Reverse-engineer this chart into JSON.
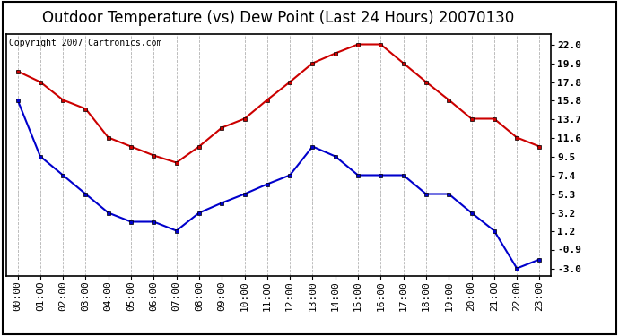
{
  "title": "Outdoor Temperature (vs) Dew Point (Last 24 Hours) 20070130",
  "copyright_text": "Copyright 2007 Cartronics.com",
  "x_labels": [
    "00:00",
    "01:00",
    "02:00",
    "03:00",
    "04:00",
    "05:00",
    "06:00",
    "07:00",
    "08:00",
    "09:00",
    "10:00",
    "11:00",
    "12:00",
    "13:00",
    "14:00",
    "15:00",
    "16:00",
    "17:00",
    "18:00",
    "19:00",
    "20:00",
    "21:00",
    "22:00",
    "23:00"
  ],
  "temp_data": [
    19.0,
    17.8,
    15.8,
    14.8,
    11.6,
    10.6,
    9.6,
    8.8,
    10.6,
    12.7,
    13.7,
    15.8,
    17.8,
    19.9,
    21.0,
    22.0,
    22.0,
    19.9,
    17.8,
    15.8,
    13.7,
    13.7,
    11.6,
    10.6
  ],
  "dew_data": [
    15.8,
    9.5,
    7.4,
    5.3,
    3.2,
    2.2,
    2.2,
    1.2,
    3.2,
    4.3,
    5.3,
    6.4,
    7.4,
    10.6,
    9.5,
    7.4,
    7.4,
    7.4,
    5.3,
    5.3,
    3.2,
    1.2,
    -3.0,
    -2.0
  ],
  "temp_color": "#cc0000",
  "dew_color": "#0000cc",
  "plot_bg": "#ffffff",
  "grid_color": "#aaaaaa",
  "yticks": [
    22.0,
    19.9,
    17.8,
    15.8,
    13.7,
    11.6,
    9.5,
    7.4,
    5.3,
    3.2,
    1.2,
    -0.9,
    -3.0
  ],
  "ylim_min": -3.8,
  "ylim_max": 23.2,
  "title_fontsize": 12,
  "copyright_fontsize": 7,
  "tick_fontsize": 8,
  "ylabel_fontsize": 9,
  "marker": "s",
  "marker_size": 3.5,
  "line_width": 1.5
}
